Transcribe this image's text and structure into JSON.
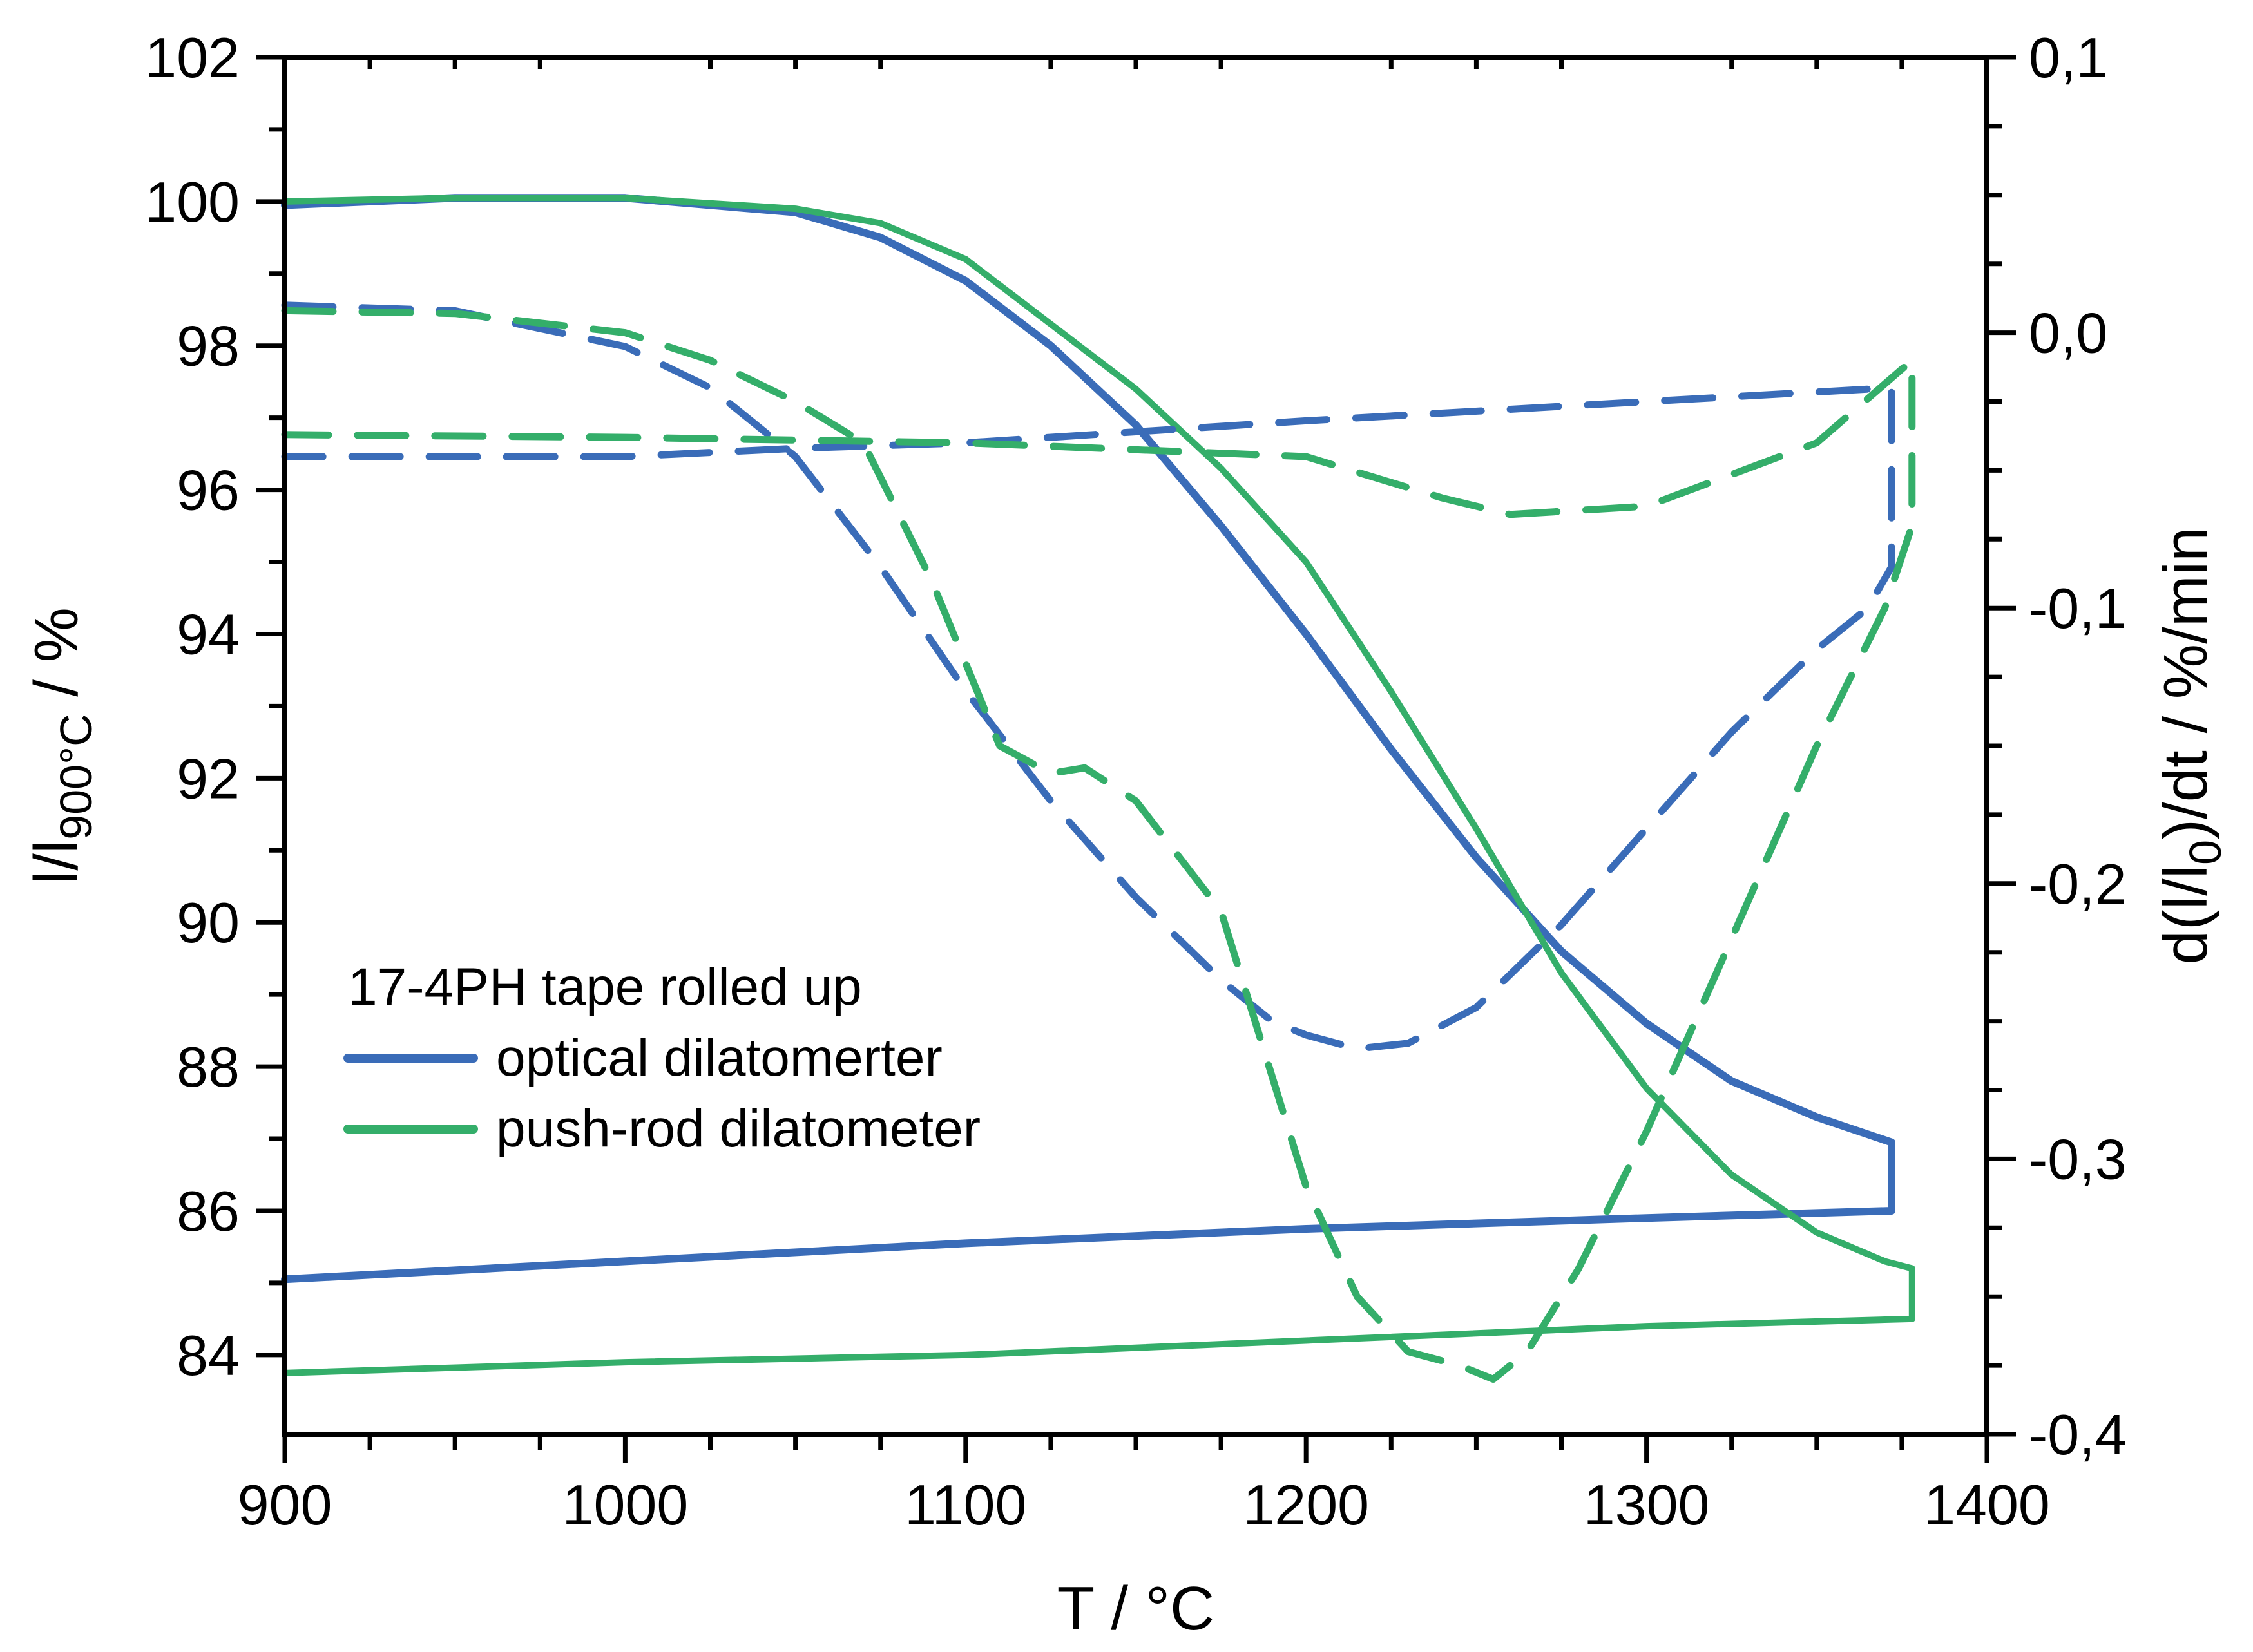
{
  "chart_data": {
    "type": "line",
    "title": "",
    "xlabel": "T / °C",
    "ylabel_left": "l/l900°C / %",
    "ylabel_left_main": "l/l",
    "ylabel_left_sub": "900°C",
    "ylabel_left_suffix": " / %",
    "ylabel_right": "d(l/l0)/dt / %/min",
    "ylabel_right_main": "d(l/l",
    "ylabel_right_sub": "0",
    "ylabel_right_suffix": ")/dt / %/min",
    "xlim": [
      900,
      1400
    ],
    "ylim_left": [
      82.9,
      102
    ],
    "ylim_right": [
      -0.4,
      0.1
    ],
    "x_ticks": [
      "900",
      "1000",
      "1100",
      "1200",
      "1300",
      "1400"
    ],
    "y_left_ticks": [
      "84",
      "86",
      "88",
      "90",
      "92",
      "94",
      "96",
      "98",
      "100",
      "102"
    ],
    "y_right_ticks": [
      "-0,4",
      "-0,3",
      "-0,2",
      "-0,1",
      "0,0",
      "0,1"
    ],
    "grid": false,
    "legend": {
      "title": "17-4PH tape rolled up",
      "position": "lower-left",
      "entries": [
        {
          "label": "optical dilatomerter",
          "color": "#3A6CB8"
        },
        {
          "label": "push-rod dilatometer",
          "color": "#34AE6A"
        }
      ]
    },
    "series": [
      {
        "name": "optical dilatomerter (l/l900°C, heating + cooling)",
        "axis": "left",
        "style": "solid",
        "color": "#3A6CB8",
        "x": [
          900,
          950,
          1000,
          1050,
          1075,
          1100,
          1125,
          1150,
          1175,
          1200,
          1225,
          1250,
          1275,
          1300,
          1325,
          1350,
          1372,
          1372,
          1372,
          1300,
          1200,
          1100,
          1000,
          900
        ],
        "y": [
          99.95,
          100.05,
          100.05,
          99.85,
          99.5,
          98.9,
          98.0,
          96.9,
          95.5,
          94.0,
          92.4,
          90.9,
          89.6,
          88.6,
          87.8,
          87.3,
          86.95,
          86.5,
          86.0,
          85.9,
          85.75,
          85.55,
          85.3,
          85.05
        ]
      },
      {
        "name": "push-rod dilatometer (l/l900°C, heating + cooling)",
        "axis": "left",
        "style": "solid",
        "color": "#34AE6A",
        "x": [
          900,
          950,
          1000,
          1050,
          1075,
          1100,
          1125,
          1150,
          1175,
          1200,
          1225,
          1250,
          1275,
          1300,
          1325,
          1350,
          1370,
          1378,
          1378,
          1378,
          1300,
          1200,
          1100,
          1000,
          900
        ],
        "y": [
          100.0,
          100.05,
          100.05,
          99.9,
          99.7,
          99.2,
          98.3,
          97.4,
          96.3,
          95.0,
          93.2,
          91.3,
          89.3,
          87.7,
          86.5,
          85.7,
          85.3,
          85.2,
          84.9,
          84.5,
          84.4,
          84.2,
          84.0,
          83.9,
          83.75
        ]
      },
      {
        "name": "optical dilatomerter (derivative)",
        "axis": "right",
        "style": "dashed",
        "color": "#3A6CB8",
        "x": [
          900,
          950,
          1000,
          1025,
          1050,
          1075,
          1100,
          1125,
          1150,
          1175,
          1190,
          1200,
          1215,
          1230,
          1250,
          1275,
          1300,
          1325,
          1350,
          1365,
          1372,
          1372,
          1372,
          1300,
          1200,
          1100,
          1050,
          1000,
          900
        ],
        "y": [
          0.01,
          0.008,
          -0.005,
          -0.02,
          -0.045,
          -0.085,
          -0.13,
          -0.17,
          -0.205,
          -0.235,
          -0.25,
          -0.255,
          -0.26,
          -0.258,
          -0.245,
          -0.215,
          -0.18,
          -0.145,
          -0.115,
          -0.1,
          -0.085,
          -0.02,
          -0.02,
          -0.025,
          -0.032,
          -0.04,
          -0.042,
          -0.045,
          -0.045
        ]
      },
      {
        "name": "push-rod dilatometer (derivative)",
        "axis": "right",
        "style": "dashed",
        "color": "#34AE6A",
        "x": [
          900,
          950,
          1000,
          1025,
          1050,
          1070,
          1090,
          1110,
          1125,
          1135,
          1150,
          1175,
          1190,
          1200,
          1215,
          1230,
          1245,
          1255,
          1265,
          1280,
          1300,
          1325,
          1350,
          1370,
          1378,
          1378,
          1378,
          1350,
          1300,
          1260,
          1240,
          1200,
          1100,
          1000,
          900
        ],
        "y": [
          0.008,
          0.007,
          0.0,
          -0.01,
          -0.025,
          -0.04,
          -0.09,
          -0.15,
          -0.16,
          -0.158,
          -0.17,
          -0.21,
          -0.27,
          -0.31,
          -0.35,
          -0.37,
          -0.375,
          -0.38,
          -0.37,
          -0.34,
          -0.29,
          -0.22,
          -0.15,
          -0.1,
          -0.07,
          -0.05,
          -0.01,
          -0.04,
          -0.063,
          -0.066,
          -0.06,
          -0.045,
          -0.04,
          -0.038,
          -0.037
        ]
      }
    ]
  }
}
